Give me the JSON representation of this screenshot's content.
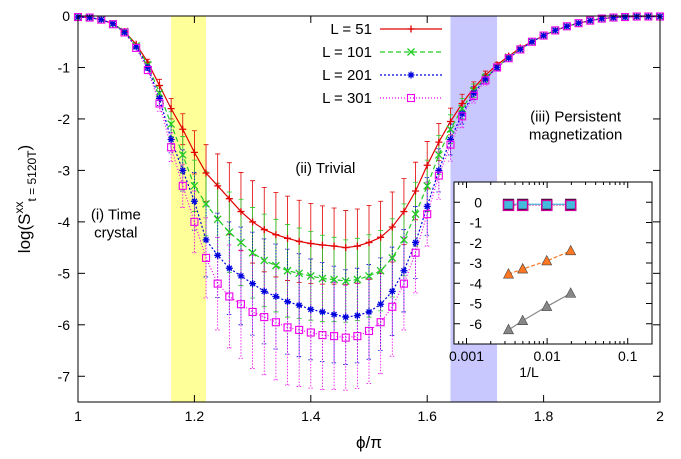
{
  "chart_data": [
    {
      "type": "line",
      "title": "",
      "xlabel": "ϕ/π",
      "ylabel_main": "log(S",
      "ylabel_sup": "xx",
      "ylabel_sub": "t = 5120T",
      "ylabel_close": ")",
      "xlim": [
        1,
        2
      ],
      "ylim": [
        -7.5,
        0
      ],
      "xticks": [
        1,
        1.2,
        1.4,
        1.6,
        1.8,
        2
      ],
      "xtick_labels": [
        "1",
        "1.2",
        "1.4",
        "1.6",
        "1.8",
        "2"
      ],
      "yticks": [
        0,
        -1,
        -2,
        -3,
        -4,
        -5,
        -6,
        -7
      ],
      "ytick_labels": [
        "0",
        "-1",
        "-2",
        "-3",
        "-4",
        "-5",
        "-6",
        "-7"
      ],
      "grid": false,
      "legend_position": "top-center",
      "regions": [
        {
          "x0": 1.16,
          "x1": 1.22,
          "color": "#ffff99"
        },
        {
          "x0": 1.64,
          "x1": 1.72,
          "color": "#c8c8ff"
        }
      ],
      "annotations": [
        {
          "lines": [
            "(i) Time",
            "crystal"
          ],
          "x": 1.065,
          "y": -3.95
        },
        {
          "lines": [
            "(ii) Trivial"
          ],
          "x": 1.425,
          "y": -3.05
        },
        {
          "lines": [
            "(iii) Persistent",
            "magnetization"
          ],
          "x": 1.855,
          "y": -2.05
        }
      ],
      "x": [
        1.0,
        1.02,
        1.04,
        1.06,
        1.08,
        1.1,
        1.12,
        1.14,
        1.16,
        1.18,
        1.2,
        1.22,
        1.24,
        1.26,
        1.28,
        1.3,
        1.32,
        1.34,
        1.36,
        1.38,
        1.4,
        1.42,
        1.44,
        1.46,
        1.48,
        1.5,
        1.52,
        1.54,
        1.56,
        1.58,
        1.6,
        1.62,
        1.64,
        1.66,
        1.68,
        1.7,
        1.72,
        1.74,
        1.76,
        1.78,
        1.8,
        1.82,
        1.84,
        1.86,
        1.88,
        1.9,
        1.92,
        1.94,
        1.96,
        1.98,
        2.0
      ],
      "series": [
        {
          "name": "L = 51",
          "color": "#e00000",
          "marker": "plus",
          "dash": "",
          "values": [
            -0.02,
            -0.03,
            -0.07,
            -0.15,
            -0.3,
            -0.55,
            -0.9,
            -1.35,
            -1.8,
            -2.2,
            -2.65,
            -3.05,
            -3.3,
            -3.55,
            -3.8,
            -4.0,
            -4.15,
            -4.25,
            -4.32,
            -4.38,
            -4.42,
            -4.45,
            -4.47,
            -4.5,
            -4.47,
            -4.4,
            -4.3,
            -4.1,
            -3.8,
            -3.4,
            -2.9,
            -2.45,
            -2.05,
            -1.7,
            -1.4,
            -1.15,
            -0.95,
            -0.78,
            -0.62,
            -0.5,
            -0.38,
            -0.28,
            -0.2,
            -0.14,
            -0.09,
            -0.05,
            -0.03,
            -0.02,
            -0.01,
            -0.01,
            -0.01
          ],
          "err": [
            0,
            0,
            0,
            0,
            0,
            0,
            0.06,
            0.12,
            0.2,
            0.3,
            0.42,
            0.55,
            0.62,
            0.7,
            0.76,
            0.8,
            0.82,
            0.82,
            0.82,
            0.8,
            0.78,
            0.76,
            0.74,
            0.72,
            0.72,
            0.72,
            0.7,
            0.68,
            0.64,
            0.56,
            0.46,
            0.36,
            0.26,
            0.18,
            0.12,
            0.08,
            0.05,
            0.03,
            0,
            0,
            0,
            0,
            0,
            0,
            0,
            0,
            0,
            0,
            0,
            0,
            0
          ]
        },
        {
          "name": "L = 101",
          "color": "#22cc22",
          "marker": "cross",
          "dash": "5,3",
          "values": [
            -0.02,
            -0.03,
            -0.07,
            -0.15,
            -0.3,
            -0.58,
            -0.95,
            -1.5,
            -2.1,
            -2.7,
            -3.3,
            -3.65,
            -3.95,
            -4.2,
            -4.4,
            -4.6,
            -4.75,
            -4.85,
            -4.95,
            -5.0,
            -5.05,
            -5.1,
            -5.12,
            -5.15,
            -5.12,
            -5.05,
            -4.95,
            -4.7,
            -4.35,
            -3.85,
            -3.3,
            -2.7,
            -2.2,
            -1.8,
            -1.45,
            -1.2,
            -1.0,
            -0.8,
            -0.64,
            -0.5,
            -0.38,
            -0.28,
            -0.2,
            -0.14,
            -0.09,
            -0.05,
            -0.03,
            -0.02,
            -0.01,
            -0.01,
            -0.01
          ],
          "err": [
            0,
            0,
            0,
            0,
            0,
            0,
            0.06,
            0.14,
            0.24,
            0.36,
            0.5,
            0.62,
            0.7,
            0.78,
            0.84,
            0.88,
            0.9,
            0.9,
            0.9,
            0.88,
            0.86,
            0.84,
            0.82,
            0.8,
            0.8,
            0.8,
            0.78,
            0.76,
            0.7,
            0.62,
            0.5,
            0.38,
            0.28,
            0.2,
            0.13,
            0.08,
            0.05,
            0.03,
            0,
            0,
            0,
            0,
            0,
            0,
            0,
            0,
            0,
            0,
            0,
            0,
            0
          ]
        },
        {
          "name": "L = 201",
          "color": "#0000dd",
          "marker": "star",
          "dash": "2,2",
          "values": [
            -0.02,
            -0.03,
            -0.07,
            -0.15,
            -0.32,
            -0.6,
            -1.0,
            -1.6,
            -2.4,
            -3.0,
            -3.6,
            -4.35,
            -4.65,
            -4.9,
            -5.05,
            -5.2,
            -5.35,
            -5.45,
            -5.55,
            -5.62,
            -5.7,
            -5.75,
            -5.8,
            -5.85,
            -5.82,
            -5.75,
            -5.6,
            -5.35,
            -4.95,
            -4.4,
            -3.7,
            -3.0,
            -2.4,
            -1.9,
            -1.5,
            -1.22,
            -1.0,
            -0.82,
            -0.65,
            -0.5,
            -0.38,
            -0.28,
            -0.2,
            -0.14,
            -0.09,
            -0.05,
            -0.03,
            -0.02,
            -0.01,
            -0.01,
            -0.01
          ],
          "err": [
            0,
            0,
            0,
            0,
            0,
            0,
            0.06,
            0.14,
            0.26,
            0.4,
            0.56,
            0.72,
            0.82,
            0.9,
            0.95,
            1.0,
            1.02,
            1.02,
            1.02,
            1.0,
            0.98,
            0.96,
            0.94,
            0.92,
            0.92,
            0.92,
            0.9,
            0.86,
            0.8,
            0.7,
            0.56,
            0.42,
            0.3,
            0.2,
            0.13,
            0.08,
            0.05,
            0.03,
            0,
            0,
            0,
            0,
            0,
            0,
            0,
            0,
            0,
            0,
            0,
            0,
            0
          ]
        },
        {
          "name": "L = 301",
          "color": "#ee00ee",
          "marker": "square",
          "dash": "1,2",
          "values": [
            -0.02,
            -0.03,
            -0.07,
            -0.16,
            -0.32,
            -0.62,
            -1.05,
            -1.7,
            -2.55,
            -3.3,
            -4.0,
            -4.7,
            -5.2,
            -5.45,
            -5.6,
            -5.75,
            -5.85,
            -5.95,
            -6.05,
            -6.1,
            -6.15,
            -6.2,
            -6.22,
            -6.25,
            -6.22,
            -6.12,
            -5.95,
            -5.65,
            -5.2,
            -4.6,
            -3.85,
            -3.1,
            -2.5,
            -1.95,
            -1.55,
            -1.25,
            -1.0,
            -0.82,
            -0.65,
            -0.5,
            -0.38,
            -0.28,
            -0.2,
            -0.14,
            -0.09,
            -0.05,
            -0.03,
            -0.02,
            -0.01,
            -0.01,
            -0.01
          ],
          "err": [
            0,
            0,
            0,
            0,
            0,
            0,
            0.07,
            0.15,
            0.28,
            0.42,
            0.6,
            0.78,
            0.9,
            1.0,
            1.05,
            1.1,
            1.12,
            1.12,
            1.12,
            1.1,
            1.08,
            1.06,
            1.04,
            1.02,
            1.02,
            1.02,
            1.0,
            0.96,
            0.9,
            0.78,
            0.62,
            0.46,
            0.32,
            0.22,
            0.14,
            0.09,
            0.05,
            0.03,
            0,
            0,
            0,
            0,
            0,
            0,
            0,
            0,
            0,
            0,
            0,
            0,
            0
          ]
        }
      ]
    },
    {
      "type": "line",
      "title": "",
      "xlabel": "1/L",
      "xscale": "log",
      "xlim": [
        0.0007,
        0.2
      ],
      "ylim": [
        -7,
        1
      ],
      "xticks": [
        0.001,
        0.01,
        0.1
      ],
      "xtick_labels": [
        "0.001",
        "0.01",
        "0.1"
      ],
      "yticks": [
        0,
        -1,
        -2,
        -3,
        -4,
        -5,
        -6
      ],
      "ytick_labels": [
        "0",
        "-1",
        "-2",
        "-3",
        "-4",
        "-5",
        "-6"
      ],
      "grid": false,
      "x": [
        0.00332,
        0.004975,
        0.009901,
        0.019608
      ],
      "series": [
        {
          "marker": "square-cyan",
          "color": "#44bbdd",
          "dash": "",
          "values": [
            -0.1,
            -0.1,
            -0.1,
            -0.1
          ]
        },
        {
          "marker": "square-magenta",
          "color": "#cc0099",
          "dash": "1,2",
          "values": [
            -0.15,
            -0.15,
            -0.15,
            -0.15
          ]
        },
        {
          "marker": "triangle",
          "color": "#ff7722",
          "dash": "4,2",
          "values": [
            -3.55,
            -3.3,
            -2.9,
            -2.4
          ]
        },
        {
          "marker": "triangle",
          "color": "#888888",
          "dash": "",
          "values": [
            -6.3,
            -5.85,
            -5.15,
            -4.5
          ]
        }
      ]
    }
  ]
}
